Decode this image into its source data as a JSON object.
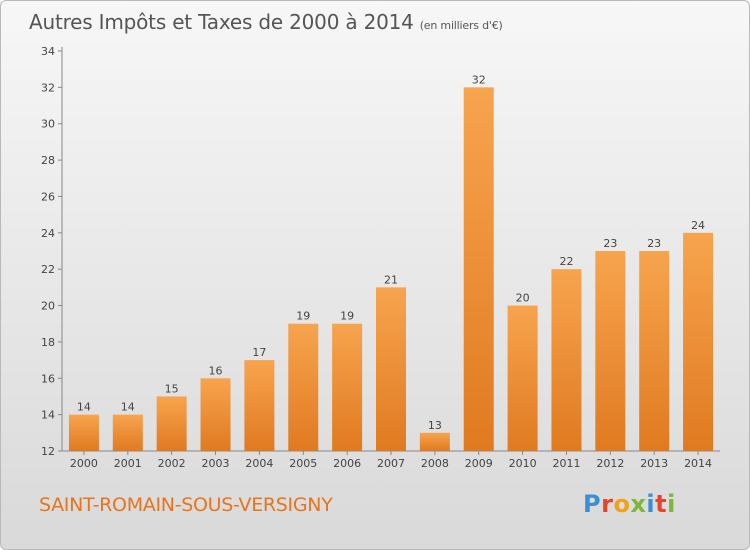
{
  "header": {
    "title": "Autres Impôts et Taxes de 2000 à 2014",
    "subtitle": "(en milliers d'€)"
  },
  "footer": {
    "commune": "SAINT-ROMAIN-SOUS-VERSIGNY",
    "logo_letters": [
      "P",
      "r",
      "o",
      "x",
      "i",
      "t",
      "i"
    ],
    "logo_colors": [
      "#3a8fd0",
      "#e2462f",
      "#f0a21b",
      "#7ab73a",
      "#3a8fd0",
      "#e2462f",
      "#7ab73a"
    ]
  },
  "colors": {
    "bar_top": "#f7a44f",
    "bar_bottom": "#e07a20",
    "commune_text": "#e8741b"
  },
  "chart_data": {
    "type": "bar",
    "title": "Autres Impôts et Taxes de 2000 à 2014",
    "subtitle": "(en milliers d'€)",
    "xlabel": "",
    "ylabel": "",
    "categories": [
      "2000",
      "2001",
      "2002",
      "2003",
      "2004",
      "2005",
      "2006",
      "2007",
      "2008",
      "2009",
      "2010",
      "2011",
      "2012",
      "2013",
      "2014"
    ],
    "values": [
      14,
      14,
      15,
      16,
      17,
      19,
      19,
      21,
      13,
      32,
      20,
      22,
      23,
      23,
      24
    ],
    "ylim": [
      12,
      34
    ],
    "yticks": [
      12,
      14,
      16,
      18,
      20,
      22,
      24,
      26,
      28,
      30,
      32,
      34
    ],
    "grid": false,
    "legend": "none"
  }
}
